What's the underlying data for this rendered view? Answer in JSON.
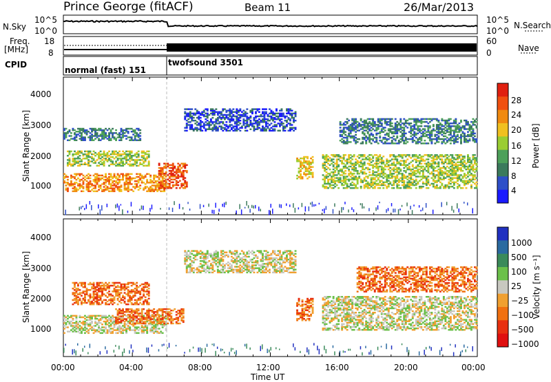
{
  "header": {
    "station": "Prince George (fitACF)",
    "beam": "Beam 11",
    "date": "26/Mar/2013"
  },
  "summary_panel": {
    "nsky_label": "N.Sky",
    "nsky_ticks": [
      "10^5",
      "10^0"
    ],
    "nsearch_label": "N.Search",
    "freq_label_1": "Freq.",
    "freq_label_2": "[MHz]",
    "freq_ticks": [
      "18",
      "8"
    ],
    "nave_label": "Nave",
    "nave_ticks": [
      "60",
      "0"
    ],
    "cpid_label": "CPID",
    "cpid_modes": [
      {
        "label": "normal (fast) 151",
        "start_hour": 0,
        "end_hour": 6
      },
      {
        "label": "twofsound 3501",
        "start_hour": 6,
        "end_hour": 24
      }
    ]
  },
  "panels": {
    "power": {
      "ylabel": "Slant Range [km]",
      "yticks": [
        "1000",
        "2000",
        "3000",
        "4000"
      ],
      "colorbar_label": "Power [dB]",
      "colorbar_ticks": [
        "4",
        "8",
        "12",
        "16",
        "20",
        "24",
        "28"
      ],
      "colors": [
        "#1a1aff",
        "#2e4fc8",
        "#3b7a5c",
        "#4da05a",
        "#9acd32",
        "#f0c020",
        "#f08a10",
        "#f05010",
        "#e02010"
      ]
    },
    "velocity": {
      "ylabel": "Slant Range [km]",
      "yticks": [
        "1000",
        "2000",
        "3000",
        "4000"
      ],
      "colorbar_label": "Velocity [m s⁻¹]",
      "colorbar_ticks": [
        "1000",
        "500",
        "100",
        "25",
        "−25",
        "−100",
        "−500",
        "−1000"
      ],
      "colors": [
        "#2030c0",
        "#2a6aa0",
        "#3a8a5a",
        "#6bc04a",
        "#c8c8c0",
        "#f0a030",
        "#f07010",
        "#e83010",
        "#e01010"
      ]
    }
  },
  "xaxis": {
    "label": "Time UT",
    "ticks": [
      "00:00",
      "04:00",
      "08:00",
      "12:00",
      "16:00",
      "20:00",
      "00:00"
    ]
  },
  "chart_data": {
    "type": "heatmap",
    "title": "Prince George (fitACF)",
    "subtitle": "Beam 11",
    "date": "26/Mar/2013",
    "xlabel": "Time UT",
    "ylabel": "Slant Range [km]",
    "x_range_hours": [
      0,
      24
    ],
    "ylim_km": [
      180,
      4500
    ],
    "scatter_regions_power": [
      {
        "t0": 0.0,
        "t1": 6.0,
        "r0": 900,
        "r1": 1500,
        "level": 6
      },
      {
        "t0": 0.2,
        "t1": 5.0,
        "r0": 1700,
        "r1": 2200,
        "level": 4
      },
      {
        "t0": 0.0,
        "t1": 4.5,
        "r0": 2500,
        "r1": 2900,
        "level": 2
      },
      {
        "t0": 5.5,
        "t1": 7.2,
        "r0": 1000,
        "r1": 1800,
        "level": 7
      },
      {
        "t0": 7.0,
        "t1": 13.5,
        "r0": 2800,
        "r1": 3500,
        "level": 1
      },
      {
        "t0": 13.5,
        "t1": 14.5,
        "r0": 1300,
        "r1": 2000,
        "level": 5
      },
      {
        "t0": 15.0,
        "t1": 24.0,
        "r0": 1000,
        "r1": 2100,
        "level": 4
      },
      {
        "t0": 16.0,
        "t1": 24.0,
        "r0": 2400,
        "r1": 3200,
        "level": 2
      }
    ],
    "scatter_regions_velocity": [
      {
        "t0": 0.0,
        "t1": 6.0,
        "r0": 900,
        "r1": 1500,
        "level": 4
      },
      {
        "t0": 0.5,
        "t1": 5.0,
        "r0": 1800,
        "r1": 2500,
        "level": 6
      },
      {
        "t0": 3.0,
        "t1": 7.0,
        "r0": 1200,
        "r1": 1700,
        "level": 6
      },
      {
        "t0": 7.0,
        "t1": 13.5,
        "r0": 2800,
        "r1": 3500,
        "level": 4
      },
      {
        "t0": 13.5,
        "t1": 14.5,
        "r0": 1300,
        "r1": 2000,
        "level": 6
      },
      {
        "t0": 15.0,
        "t1": 24.0,
        "r0": 1000,
        "r1": 2100,
        "level": 4
      },
      {
        "t0": 17.0,
        "t1": 24.0,
        "r0": 2200,
        "r1": 3000,
        "level": 6
      }
    ]
  }
}
